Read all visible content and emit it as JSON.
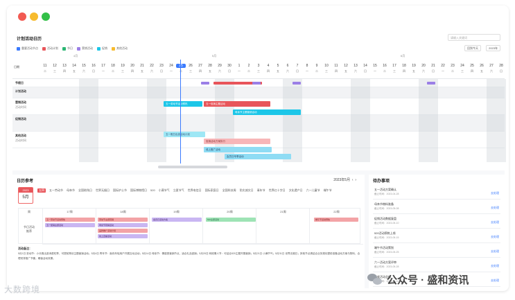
{
  "top_panel": {
    "title": "计划活动日历",
    "search_placeholder": "请输入关键词",
    "legend": [
      {
        "label": "重要活动节点",
        "color": "#3a7afe"
      },
      {
        "label": "活动计划",
        "color": "#e8555a"
      },
      {
        "label": "节日",
        "color": "#2bb673"
      },
      {
        "label": "营销活动",
        "color": "#9b7fe6"
      },
      {
        "label": "促销",
        "color": "#1cc6e8"
      },
      {
        "label": "其他活动",
        "color": "#f7bb2e"
      }
    ],
    "btn_today": "回到今天",
    "btn_year": "2023年",
    "months": [
      "4月",
      "5月",
      "6月"
    ],
    "date_label": "日期",
    "days": [
      {
        "d": "11",
        "w": "二"
      },
      {
        "d": "12",
        "w": "三"
      },
      {
        "d": "13",
        "w": "四"
      },
      {
        "d": "14",
        "w": "五"
      },
      {
        "d": "15",
        "w": "六"
      },
      {
        "d": "16",
        "w": "日"
      },
      {
        "d": "17",
        "w": "一"
      },
      {
        "d": "18",
        "w": "二"
      },
      {
        "d": "19",
        "w": "三"
      },
      {
        "d": "20",
        "w": "四"
      },
      {
        "d": "21",
        "w": "五"
      },
      {
        "d": "22",
        "w": "六"
      },
      {
        "d": "23",
        "w": "日"
      },
      {
        "d": "24",
        "w": "一"
      },
      {
        "d": "25",
        "w": "二"
      },
      {
        "d": "26",
        "w": "三"
      },
      {
        "d": "27",
        "w": "四"
      },
      {
        "d": "28",
        "w": "五"
      },
      {
        "d": "29",
        "w": "六"
      },
      {
        "d": "30",
        "w": "日"
      },
      {
        "d": "1",
        "w": "一"
      },
      {
        "d": "2",
        "w": "二"
      },
      {
        "d": "3",
        "w": "三"
      },
      {
        "d": "4",
        "w": "四"
      },
      {
        "d": "5",
        "w": "五"
      },
      {
        "d": "6",
        "w": "六"
      },
      {
        "d": "7",
        "w": "日"
      },
      {
        "d": "8",
        "w": "一"
      },
      {
        "d": "9",
        "w": "二"
      },
      {
        "d": "10",
        "w": "三"
      },
      {
        "d": "11",
        "w": "四"
      },
      {
        "d": "12",
        "w": "五"
      },
      {
        "d": "13",
        "w": "六"
      },
      {
        "d": "14",
        "w": "日"
      },
      {
        "d": "15",
        "w": "一"
      },
      {
        "d": "16",
        "w": "二"
      },
      {
        "d": "17",
        "w": "三"
      },
      {
        "d": "18",
        "w": "四"
      },
      {
        "d": "19",
        "w": "五"
      },
      {
        "d": "20",
        "w": "六"
      },
      {
        "d": "21",
        "w": "日"
      },
      {
        "d": "22",
        "w": "一"
      },
      {
        "d": "23",
        "w": "二"
      },
      {
        "d": "24",
        "w": "三"
      },
      {
        "d": "25",
        "w": "四"
      },
      {
        "d": "26",
        "w": "五"
      },
      {
        "d": "27",
        "w": "六"
      },
      {
        "d": "28",
        "w": "日"
      }
    ],
    "rows": [
      {
        "label": "节假日"
      },
      {
        "label": "计划活动"
      },
      {
        "label": "营销活动",
        "sub": "活动时间"
      },
      {
        "label": "促销活动"
      },
      {
        "label": "其他活动",
        "sub": "活动时间"
      }
    ],
    "bars": [
      {
        "text": "五一劳动节活动预热",
        "cls": "cyan"
      },
      {
        "text": "五一促销主题活动",
        "cls": "red"
      },
      {
        "text": "母亲节主题营销活动",
        "cls": "cyan"
      },
      {
        "text": "五一假日出游活动计划",
        "cls": "lcyan"
      },
      {
        "text": "促销活动方案执行",
        "cls": "pink"
      },
      {
        "text": "线上推广活动",
        "cls": "lblue"
      },
      {
        "text": "会员日专享活动",
        "cls": "lblue"
      }
    ]
  },
  "calendar_panel": {
    "title": "日历参考",
    "date_selector": "2023年5月",
    "month_year": "2023",
    "month": "5月",
    "tags": [
      "五四",
      "五一劳动节",
      "母亲节",
      "全国助残日",
      "世界无烟日",
      "国际护士节",
      "国际博物馆日",
      "520",
      "小满节气",
      "立夏节气",
      "世界电信日",
      "国际家庭日",
      "全国科技周",
      "防灾减灾日",
      "青年节",
      "世界红十字日",
      "文化遗产日",
      "六一儿童节",
      "端午节"
    ],
    "active_tag": "五四",
    "week_label": "周",
    "row_label": "节日活动",
    "row_label2": "推荐",
    "weekdays": [
      "17周",
      "18周",
      "19周",
      "20周",
      "21周",
      "22周"
    ],
    "events": [
      {
        "text": "五一劳动节活动预热",
        "cls": "pink"
      },
      {
        "text": "五一促销主题活动",
        "cls": "purple"
      },
      {
        "text": "劳动节主题营销",
        "cls": "pink"
      },
      {
        "text": "母亲节营销活动",
        "cls": "purple"
      },
      {
        "text": "品牌推广活动计划",
        "cls": "pink"
      },
      {
        "text": "线上直播活动",
        "cls": "purple"
      },
      {
        "text": "会员日活动方案",
        "cls": "purple"
      },
      {
        "text": "520主题活动",
        "cls": "green"
      },
      {
        "text": "端午节活动预热",
        "cls": "pink"
      }
    ],
    "notes_title": "活动备注：",
    "notes": "5月1日 劳动节：小长假出游消费旺季，可提前策划主题营销活动；5月4日 青年节：面向年轻用户开展互动活动；5月14日 母亲节：情感类营销节点，适合礼品促销；5月20日 网络情人节：可结合520主题开展营销；5月21日 小满节气；5月31日 世界无烟日；其他节点请结合业务规划提前准备活动方案与物料，合理安排推广节奏，确保活动效果。"
  },
  "todo_panel": {
    "title": "待办事项",
    "items": [
      {
        "title": "五一活动方案确认",
        "sub": "截止时间：2023-04-28",
        "action": "去处理"
      },
      {
        "title": "母亲节物料准备",
        "sub": "截止时间：2023-05-08",
        "action": "去处理"
      },
      {
        "title": "促销活动数据复盘",
        "sub": "截止时间：2023-05-10",
        "action": "去处理"
      },
      {
        "title": "520活动预热上线",
        "sub": "截止时间：2023-05-15",
        "action": "去处理"
      },
      {
        "title": "端午节活动策划",
        "sub": "截止时间：2023-05-25",
        "action": "去处理"
      },
      {
        "title": "六一活动方案评审",
        "sub": "截止时间：2023-05-28",
        "action": "去处理"
      },
      {
        "title": "月度活动总结",
        "sub": "截止时间：2023-05-31",
        "action": "去处理"
      }
    ]
  },
  "watermark_left": "大数跨境",
  "watermark_right": "公众号 · 盛和资讯"
}
